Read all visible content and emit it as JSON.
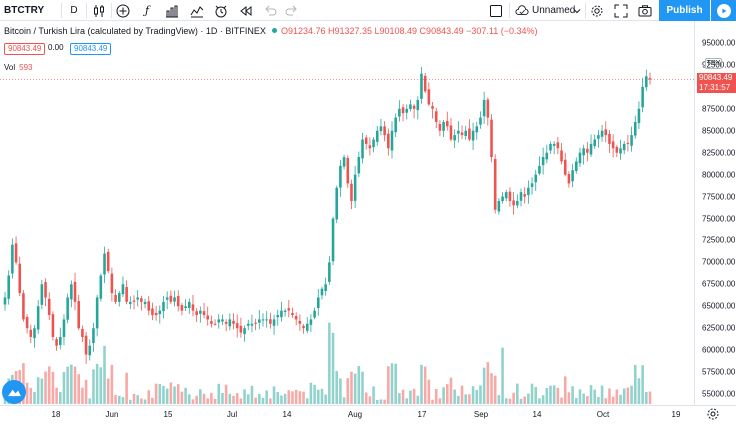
{
  "toolbar": {
    "symbol": "BTCTRY",
    "interval": "D",
    "layout_name": "Unnamed",
    "publish_label": "Publish",
    "icons": [
      "candles-icon",
      "add-indicator-icon",
      "fx-icon",
      "bar-chart-icon",
      "compare-icon",
      "alert-icon",
      "replay-icon",
      "undo-icon",
      "redo-icon",
      "layout-icon",
      "cloud-icon",
      "settings-icon",
      "fullscreen-icon",
      "camera-icon",
      "play-icon"
    ]
  },
  "legend": {
    "title": "Bitcoin / Turkish Lira (calculated by TradingView) · 1D · BITFINEX",
    "ohlc": "O91234.76  H91327.35  L90108.49  C90843.49  −307.11 (−0.34%)",
    "price_box_bid": "90843.49",
    "price_box_spread": "0.00",
    "price_box_ask": "90843.49",
    "vol_label": "Vol",
    "vol_value": "593"
  },
  "price_scale": {
    "currency": "TRY",
    "last_price": "90843.49",
    "countdown": "17:31:57"
  },
  "colors": {
    "up": "#26a69a",
    "down": "#ef5350",
    "accent": "#2196f3"
  },
  "chart_data": {
    "type": "candlestick",
    "ylim": [
      52500,
      96000
    ],
    "y_ticks": [
      "95000.00",
      "92500.00",
      "90000.00",
      "87500.00",
      "85000.00",
      "82500.00",
      "80000.00",
      "77500.00",
      "75000.00",
      "72500.00",
      "70000.00",
      "67500.00",
      "65000.00",
      "62500.00",
      "60000.00",
      "57500.00",
      "55000.00"
    ],
    "x_ticks": [
      "18",
      "Jun",
      "15",
      "Jul",
      "14",
      "Aug",
      "17",
      "Sep",
      "14",
      "Oct",
      "19"
    ],
    "close_path": [
      66000,
      68500,
      72000,
      70000,
      66500,
      63500,
      62500,
      61500,
      62500,
      65000,
      67500,
      66000,
      64000,
      61500,
      60500,
      61500,
      63500,
      66000,
      67500,
      65500,
      62500,
      61500,
      59500,
      60500,
      62500,
      66000,
      68500,
      71000,
      69000,
      66500,
      65500,
      66500,
      67500,
      65500,
      65500,
      65500,
      66000,
      65500,
      65500,
      64500,
      64000,
      64000,
      64500,
      65500,
      66000,
      65500,
      66000,
      65000,
      64500,
      65000,
      65500,
      64500,
      64000,
      64500,
      64000,
      63500,
      63000,
      63000,
      63500,
      63500,
      63000,
      63500,
      63000,
      62500,
      62000,
      62500,
      63000,
      63000,
      63000,
      63500,
      63500,
      63500,
      63000,
      63500,
      64000,
      64500,
      64500,
      64500,
      64000,
      63500,
      63000,
      62500,
      63000,
      63500,
      64500,
      66000,
      67000,
      67500,
      70000,
      75000,
      78500,
      81000,
      82000,
      79000,
      77000,
      80000,
      82000,
      84000,
      83500,
      83000,
      84000,
      85000,
      85500,
      84500,
      83000,
      85000,
      86500,
      87500,
      87000,
      87500,
      88000,
      87500,
      88500,
      91500,
      89500,
      88000,
      87500,
      86000,
      85000,
      86000,
      85500,
      84000,
      84500,
      85000,
      84500,
      85000,
      84000,
      85000,
      85500,
      86500,
      88500,
      86500,
      82000,
      76000,
      77000,
      77500,
      78000,
      77000,
      76500,
      77000,
      78000,
      77500,
      78500,
      79000,
      80000,
      81000,
      82000,
      82500,
      83500,
      83500,
      83000,
      81500,
      80000,
      79000,
      80500,
      81500,
      82500,
      83000,
      82500,
      83500,
      84000,
      84500,
      85000,
      84500,
      83500,
      83000,
      82500,
      83000,
      83500,
      83500,
      84500,
      86000,
      87500,
      90000,
      91200,
      90843
    ],
    "volume_max": 593
  }
}
